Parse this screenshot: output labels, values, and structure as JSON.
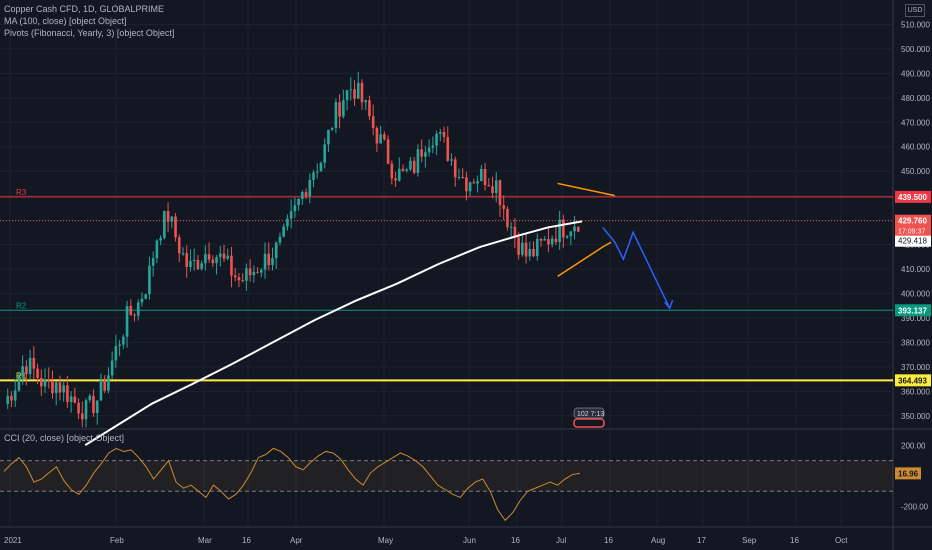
{
  "legend": {
    "line1": "Copper Cash CFD, 1D, GLOBALPRIME",
    "line2": "MA (100, close) [object Object]",
    "line3": "Pivots (Fibonacci, Yearly, 3) [object Object]",
    "cci": "CCI (20, close) [object Object]"
  },
  "currency": "USD",
  "colors": {
    "bg": "#131722",
    "up": "#26a69a",
    "down": "#ef5350",
    "ma": "#ffffff",
    "r3": "#f23645",
    "r2": "#089981",
    "r1": "#ffeb3b",
    "channel": "#ff9800",
    "projection": "#2962ff",
    "cci": "#cd8a30"
  },
  "chart_data": [
    {
      "type": "candlestick",
      "ylim": [
        345,
        520
      ],
      "y_ticks": [
        "350.000",
        "360.000",
        "370.000",
        "380.000",
        "390.000",
        "400.000",
        "410.000",
        "420.000",
        "430.000",
        "440.000",
        "450.000",
        "460.000",
        "470.000",
        "480.000",
        "490.000",
        "500.000",
        "510.000"
      ],
      "x_ticks": [
        "2021",
        "Feb",
        "Mar",
        "16",
        "Apr",
        "May",
        "Jun",
        "16",
        "Jul",
        "16",
        "Aug",
        "17",
        "Sep",
        "16",
        "Oct"
      ],
      "pivots": [
        {
          "label": "R3",
          "value": 439.5,
          "tag": "439.500"
        },
        {
          "label": "R2",
          "value": 393.137,
          "tag": "393.137"
        },
        {
          "label": "R1",
          "value": 364.493,
          "tag": "364.493"
        }
      ],
      "last_price": {
        "value": 429.76,
        "tag": "429.760",
        "countdown": "17:09:37"
      },
      "ma_value": {
        "value": 429.418,
        "tag": "429.418"
      },
      "close_path": [
        355,
        362,
        372,
        368,
        362,
        364,
        360,
        355,
        352,
        356,
        365,
        378,
        390,
        395,
        405,
        425,
        432,
        420,
        410,
        414,
        418,
        415,
        410,
        405,
        408,
        412,
        416,
        420,
        430,
        440,
        450,
        455,
        470,
        480,
        485,
        478,
        468,
        460,
        450,
        448,
        452,
        462,
        466,
        460,
        452,
        446,
        448,
        448,
        445,
        432,
        422,
        415,
        418,
        422,
        426,
        428,
        430
      ],
      "ma_path": [
        [
          70,
          338
        ],
        [
          125,
          355
        ],
        [
          158,
          363
        ],
        [
          190,
          371
        ],
        [
          224,
          380
        ],
        [
          258,
          389
        ],
        [
          292,
          397
        ],
        [
          326,
          404
        ],
        [
          360,
          412
        ],
        [
          394,
          419
        ],
        [
          428,
          424
        ],
        [
          450,
          427
        ],
        [
          478,
          429.5
        ]
      ],
      "channel_upper": [
        [
          458,
          445
        ],
        [
          505,
          440
        ]
      ],
      "channel_lower": [
        [
          458,
          407
        ],
        [
          495,
          419
        ],
        [
          502,
          421
        ]
      ],
      "projection": [
        [
          495,
          427
        ],
        [
          505,
          421
        ],
        [
          512,
          414
        ],
        [
          520,
          425
        ],
        [
          550,
          394
        ]
      ],
      "badge": "102 7:13"
    },
    {
      "type": "line",
      "name": "CCI",
      "ylim": [
        -320,
        300
      ],
      "y_ticks": [
        "200.00",
        "-200.00"
      ],
      "bands": [
        100,
        -100
      ],
      "last": {
        "value": 16.96,
        "tag": "16.96"
      },
      "values": [
        30,
        80,
        120,
        60,
        -40,
        -20,
        20,
        60,
        -30,
        -90,
        -120,
        -60,
        20,
        80,
        150,
        180,
        160,
        170,
        120,
        60,
        -20,
        40,
        100,
        -40,
        -80,
        -60,
        -100,
        -140,
        -60,
        -100,
        -150,
        -120,
        -60,
        20,
        120,
        140,
        180,
        160,
        120,
        60,
        40,
        90,
        130,
        160,
        150,
        110,
        40,
        -20,
        -60,
        20,
        60,
        90,
        120,
        150,
        130,
        100,
        60,
        0,
        -60,
        -90,
        -120,
        -140,
        -80,
        -40,
        -20,
        -100,
        -220,
        -290,
        -240,
        -160,
        -100,
        -80,
        -60,
        -40,
        -60,
        -20,
        10,
        17
      ]
    }
  ]
}
